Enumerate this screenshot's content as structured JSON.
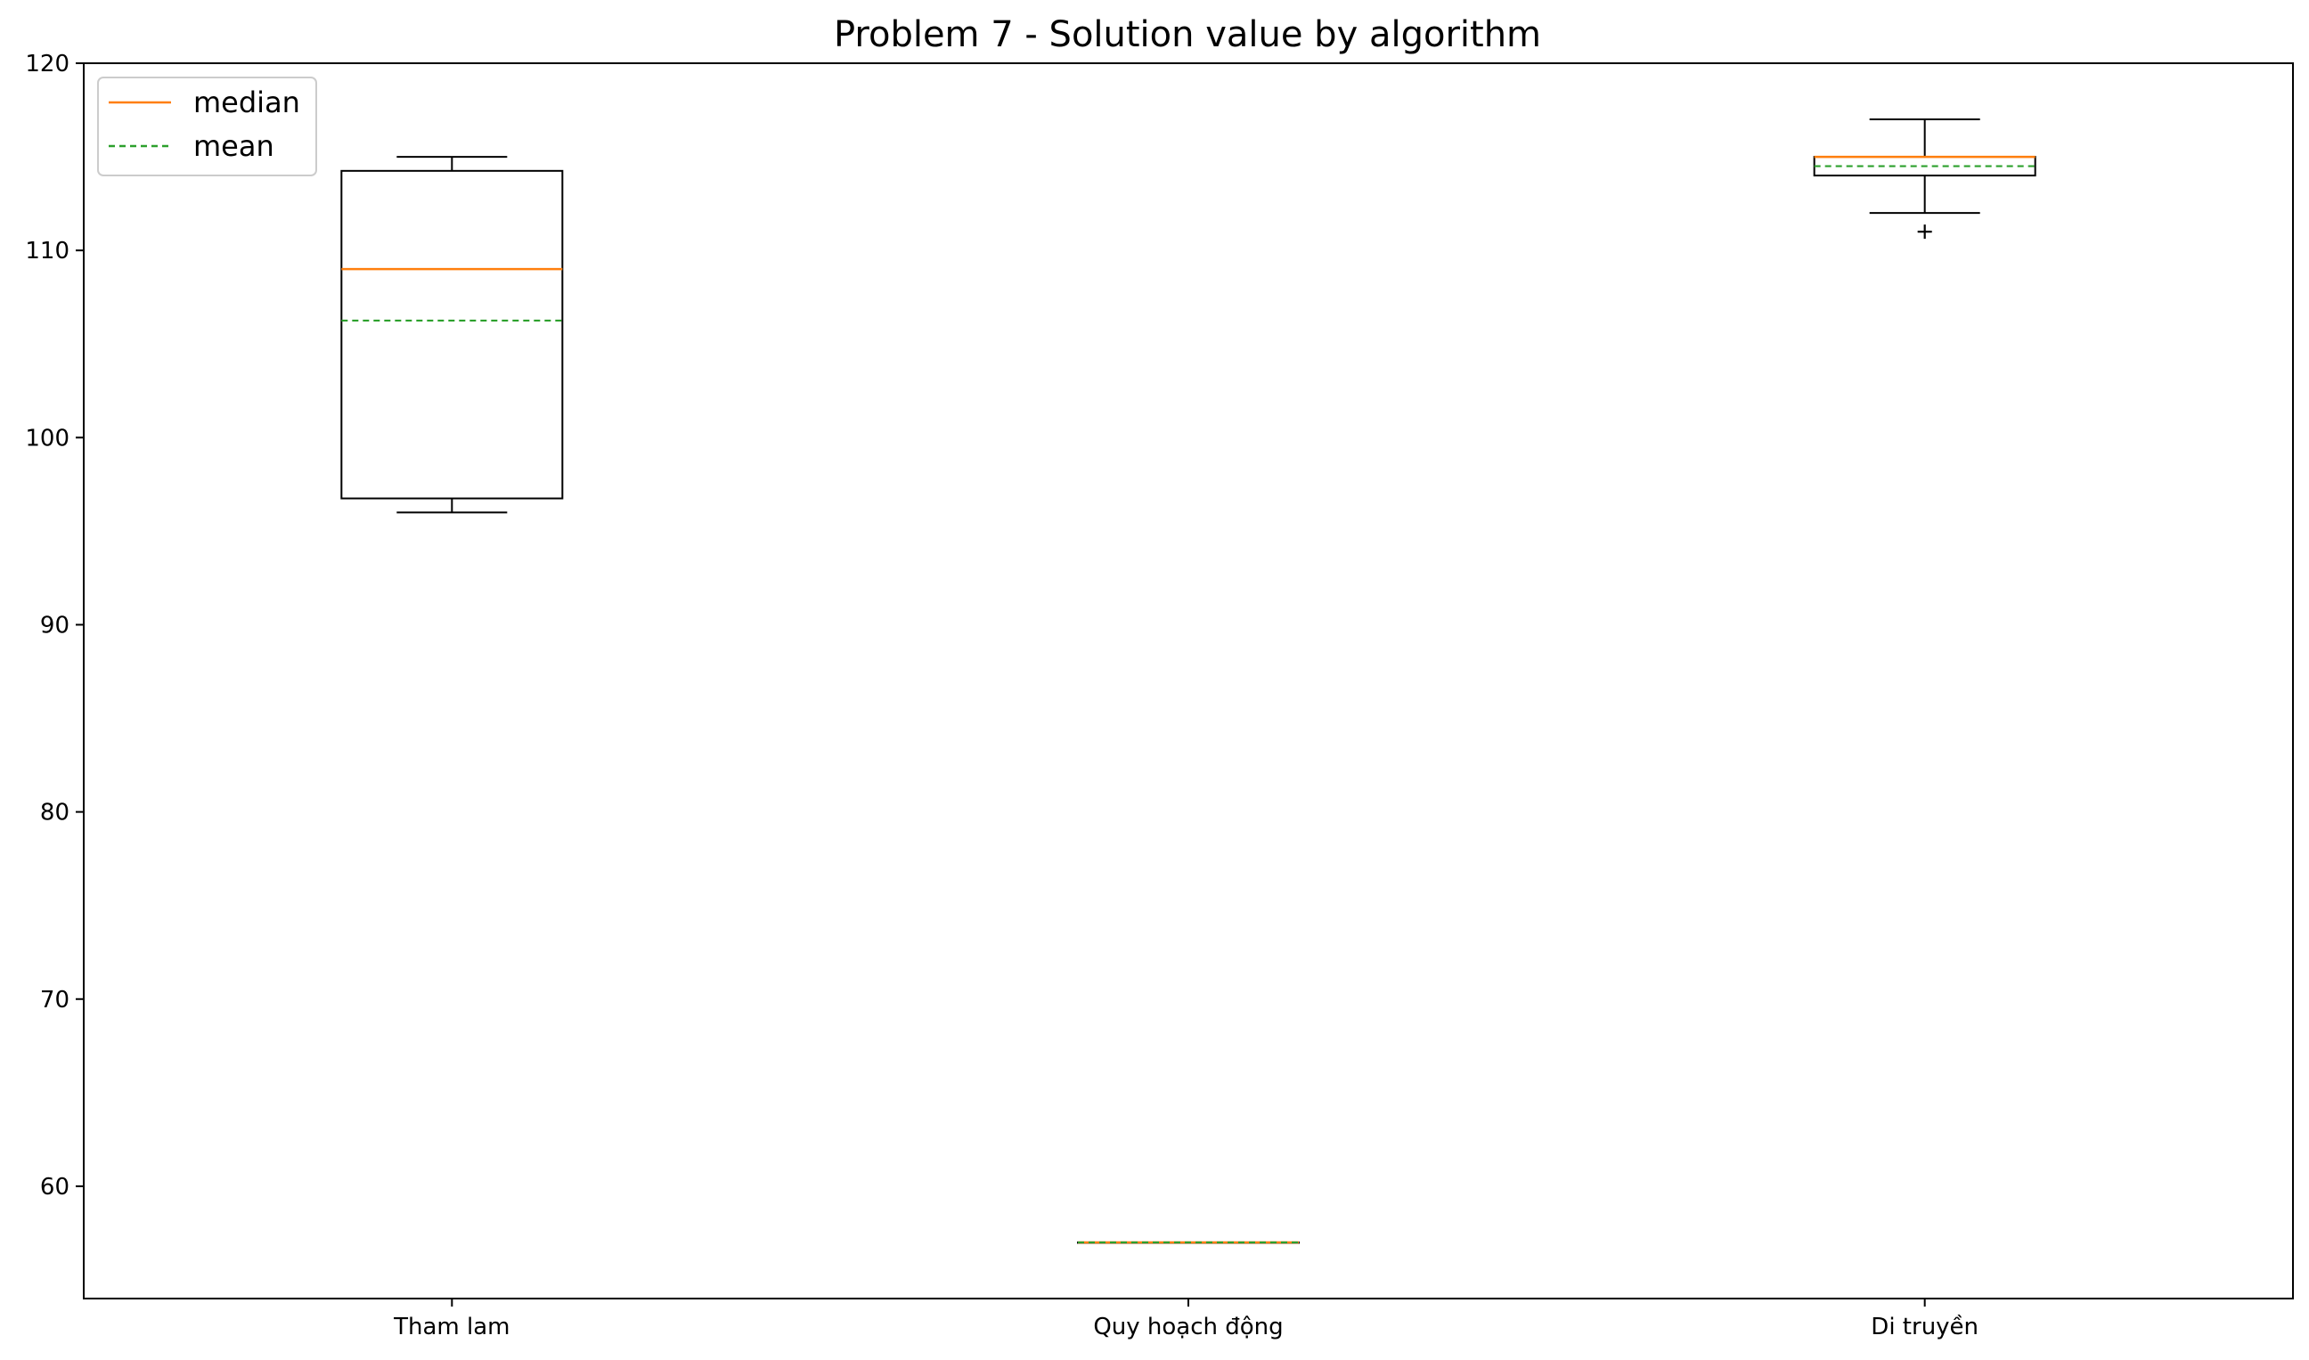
{
  "chart_data": {
    "type": "box",
    "title": "Problem 7 - Solution value by algorithm",
    "xlabel": "",
    "ylabel": "",
    "categories": [
      "Tham lam",
      "Quy hoạch động",
      "Di truyền"
    ],
    "ylim": [
      54,
      120
    ],
    "yticks": [
      60,
      70,
      80,
      90,
      100,
      110,
      120
    ],
    "boxes": [
      {
        "category": "Tham lam",
        "whisker_low": 96,
        "q1": 96.75,
        "median": 109,
        "mean": 106.25,
        "q3": 114.25,
        "whisker_high": 115,
        "outliers": []
      },
      {
        "category": "Quy hoạch động",
        "whisker_low": 57,
        "q1": 57,
        "median": 57,
        "mean": 57,
        "q3": 57,
        "whisker_high": 57,
        "outliers": []
      },
      {
        "category": "Di truyền",
        "whisker_low": 112,
        "q1": 114,
        "median": 115,
        "mean": 114.5,
        "q3": 115,
        "whisker_high": 117,
        "outliers": [
          111
        ]
      }
    ],
    "legend": {
      "position": "top-left",
      "entries": [
        {
          "label": "median",
          "color": "#ff7f0e",
          "style": "solid"
        },
        {
          "label": "mean",
          "color": "#2ca02c",
          "style": "dashed"
        }
      ]
    },
    "grid": false,
    "colors": {
      "median": "#ff7f0e",
      "mean": "#2ca02c",
      "box": "#000000"
    }
  }
}
